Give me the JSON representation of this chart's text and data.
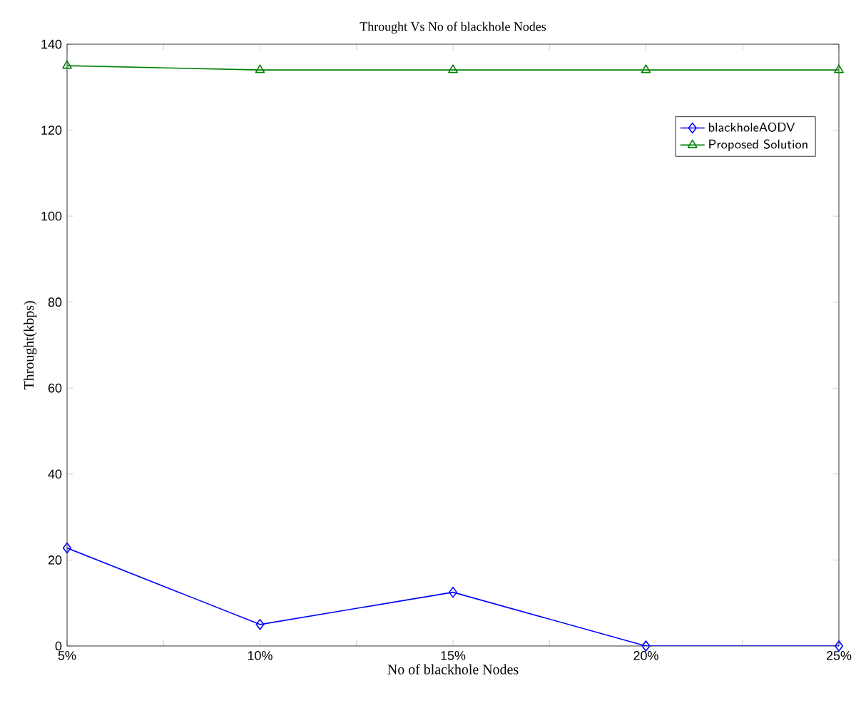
{
  "chart_data": {
    "type": "line",
    "title": "Throught Vs No of blackhole Nodes",
    "xlabel": "No of blackhole Nodes",
    "ylabel": "Throught(kbps)",
    "x": [
      5,
      10,
      15,
      20,
      25
    ],
    "xlim": [
      5,
      25
    ],
    "xticks": [
      {
        "value": 5,
        "label": "5%"
      },
      {
        "value": 7.5,
        "label": null
      },
      {
        "value": 10,
        "label": "10%"
      },
      {
        "value": 12.5,
        "label": null
      },
      {
        "value": 15,
        "label": "15%"
      },
      {
        "value": 17.5,
        "label": null
      },
      {
        "value": 20,
        "label": "20%"
      },
      {
        "value": 22.5,
        "label": null
      },
      {
        "value": 25,
        "label": "25%"
      }
    ],
    "ylim": [
      0,
      140
    ],
    "yticks": [
      0,
      20,
      40,
      60,
      80,
      100,
      120,
      140
    ],
    "series": [
      {
        "name": "blackholeAODV",
        "color": "#0000ff",
        "marker": "diamond",
        "values": [
          22.8,
          5,
          12.5,
          0,
          0
        ]
      },
      {
        "name": "Proposed Solution",
        "color": "#008000",
        "marker": "triangle",
        "values": [
          135,
          134,
          134,
          134,
          134
        ]
      }
    ],
    "legend": "top right",
    "grid": false,
    "line_style": "solid"
  }
}
